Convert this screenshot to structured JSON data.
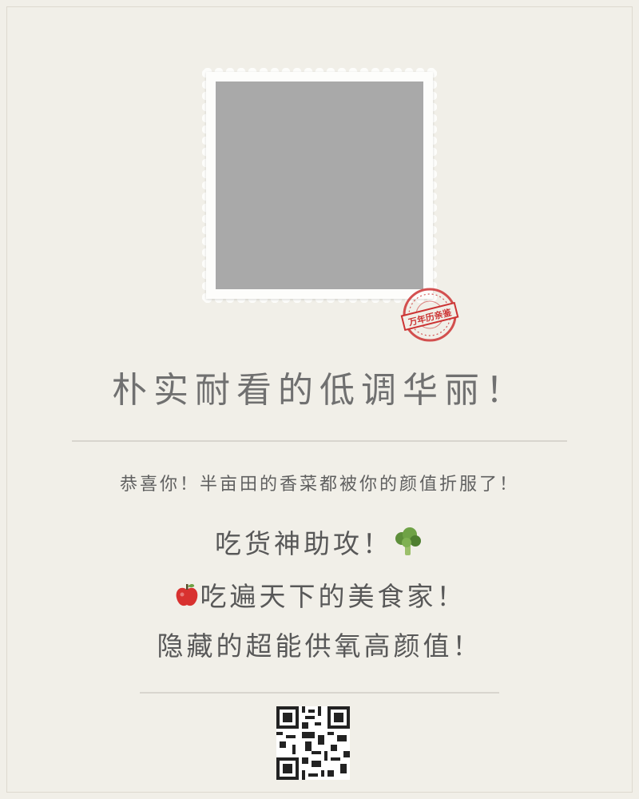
{
  "stamp": {
    "text": "万年历亲鉴",
    "color": "#cc3333"
  },
  "headline": "朴实耐看的低调华丽！",
  "subline": "恭喜你！半亩田的香菜都被你的颜值折服了！",
  "lines": {
    "line1": "吃货神助攻！",
    "line2": "吃遍天下的美食家！",
    "line3": "隐藏的超能供氧高颜值！"
  },
  "icons": {
    "photo": "photo-placeholder",
    "broccoli": "broccoli-icon",
    "apple": "apple-icon",
    "qr": "qr-code-icon"
  },
  "colors": {
    "background": "#f1efe8",
    "text": "#707070",
    "placeholder": "#a9a9a9"
  }
}
